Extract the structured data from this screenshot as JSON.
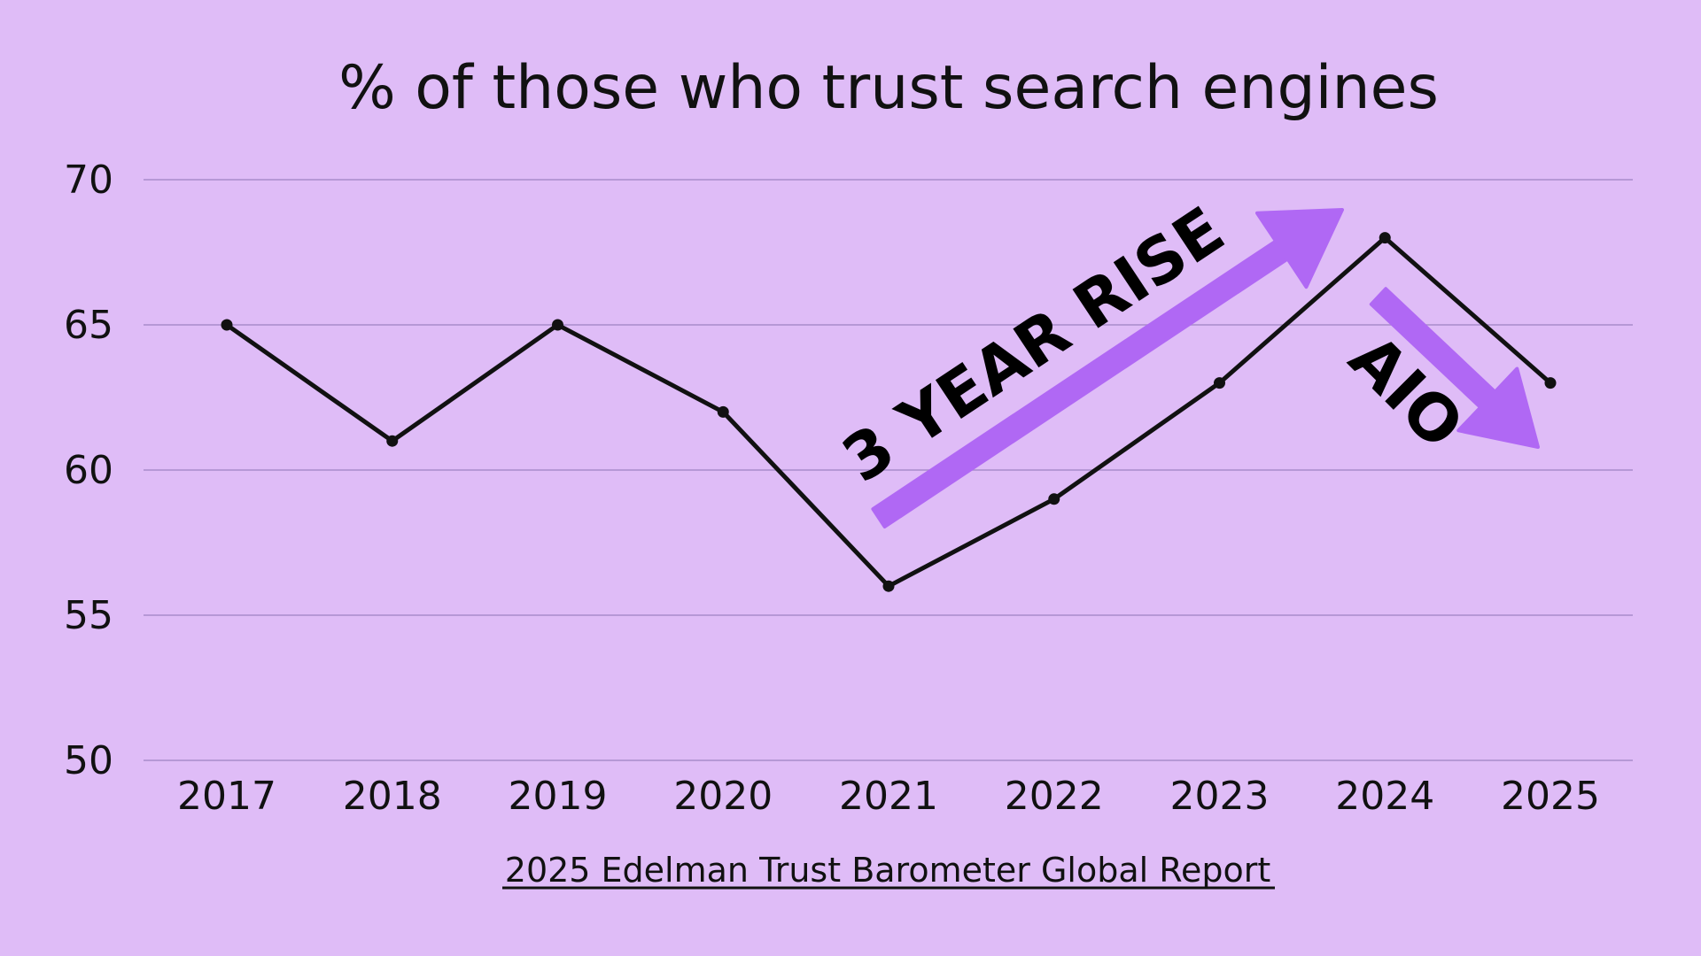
{
  "chart_data": {
    "type": "line",
    "title": "% of those who trust search engines",
    "xlabel": "",
    "ylabel": "",
    "categories": [
      "2017",
      "2018",
      "2019",
      "2020",
      "2021",
      "2022",
      "2023",
      "2024",
      "2025"
    ],
    "values": [
      65,
      61,
      65,
      62,
      56,
      59,
      63,
      68,
      63
    ],
    "ylim": [
      50,
      70
    ],
    "yticks": [
      50,
      55,
      60,
      65,
      70
    ],
    "grid": true,
    "legend": "none",
    "annotations": [
      {
        "text": "3 YEAR RISE",
        "from": "2021",
        "to": "2024",
        "direction": "up"
      },
      {
        "text": "AIO",
        "from": "2024",
        "to": "2025",
        "direction": "down"
      }
    ],
    "source": "2025 Edelman Trust Barometer Global Report"
  },
  "colors": {
    "background": "#dfbcf7",
    "gridline": "#a98ccc",
    "line": "#111111",
    "arrow": "#b068f4",
    "text": "#111111"
  }
}
